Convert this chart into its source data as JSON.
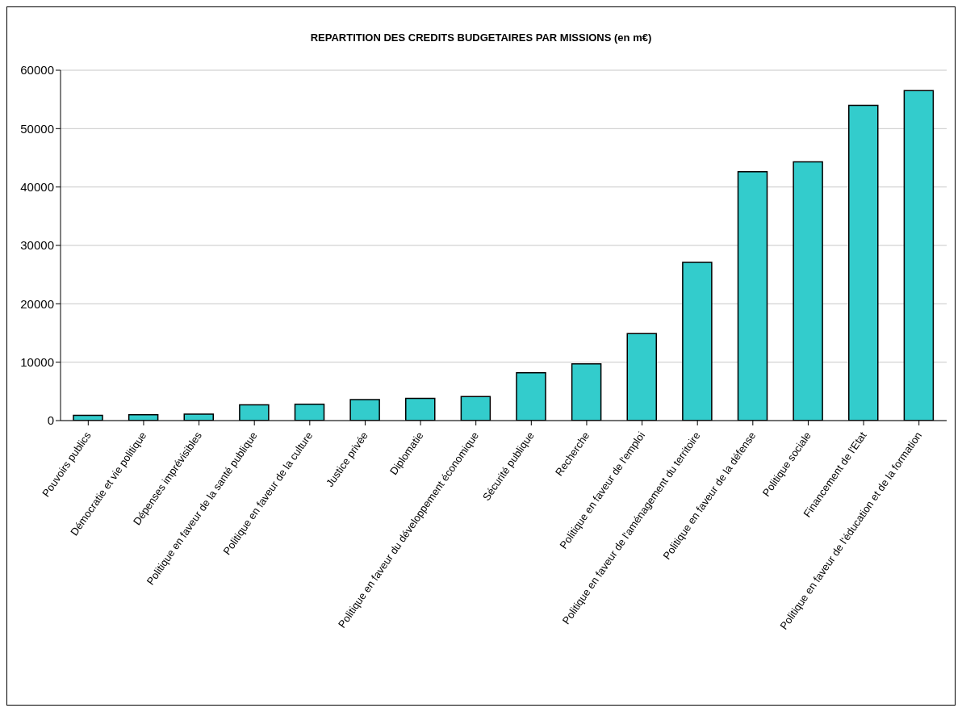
{
  "chart_data": {
    "type": "bar",
    "title": "REPARTITION DES CREDITS BUDGETAIRES PAR MISSIONS (en m€)",
    "categories": [
      "Pouvoirs publics",
      "Démocratie et vie politique",
      "Dépenses imprévisibles",
      "Politique en faveur de la santé publique",
      "Politique en faveur de la culture",
      "Justice privée",
      "Diplomatie",
      "Politique en faveur du développement économique",
      "Sécurité publique",
      "Recherche",
      "Politique en faveur de l'emploi",
      "Politique en faveur de l'aménagement du territoire",
      "Politique en faveur de la défense",
      "Politique sociale",
      "Financement de l'Etat",
      "Politique en faveur de l'éducation et de la formation"
    ],
    "values": [
      900,
      1000,
      1100,
      2700,
      2800,
      3600,
      3800,
      4100,
      8200,
      9700,
      14900,
      27100,
      42600,
      44300,
      54000,
      56500
    ],
    "color": "#33cccc",
    "ylim": [
      0,
      60000
    ],
    "yticks": [
      0,
      10000,
      20000,
      30000,
      40000,
      50000,
      60000
    ],
    "grid": "y"
  }
}
